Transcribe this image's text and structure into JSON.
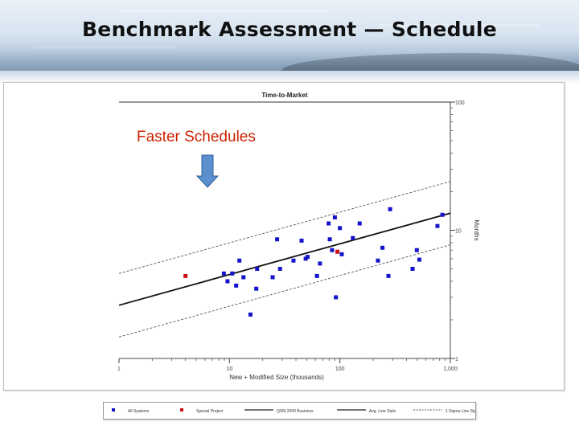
{
  "slide": {
    "title": "Benchmark Assessment — Schedule"
  },
  "annotation": {
    "text": "Faster Schedules",
    "color": "#cc2200",
    "arrow_color": "#5b8fce"
  },
  "chart_data": {
    "type": "scatter",
    "title": "Time-to-Market",
    "xlabel": "New + Modified Size (thousands)",
    "ylabel": "Months",
    "x_scale": "log",
    "y_scale": "log",
    "xlim": [
      1,
      1000
    ],
    "ylim": [
      1,
      100
    ],
    "x_tick_labels": [
      {
        "value": 1,
        "label": "1"
      },
      {
        "value": 10,
        "label": "10"
      },
      {
        "value": 100,
        "label": "100"
      },
      {
        "value": 1000,
        "label": "1,000"
      }
    ],
    "y_tick_labels": [
      {
        "value": 1,
        "label": "1"
      },
      {
        "value": 10,
        "label": "10"
      },
      {
        "value": 100,
        "label": "100"
      }
    ],
    "series": [
      {
        "name": "All Systems",
        "color": "#1414c8",
        "marker": "square",
        "points": [
          {
            "x": 8.9,
            "y": 4.6
          },
          {
            "x": 9.6,
            "y": 4.0
          },
          {
            "x": 10.6,
            "y": 4.6
          },
          {
            "x": 11.5,
            "y": 3.7
          },
          {
            "x": 12.3,
            "y": 5.8
          },
          {
            "x": 13.4,
            "y": 4.3
          },
          {
            "x": 15.5,
            "y": 2.2
          },
          {
            "x": 17.5,
            "y": 3.5
          },
          {
            "x": 17.8,
            "y": 5.0
          },
          {
            "x": 24.6,
            "y": 4.3
          },
          {
            "x": 27.0,
            "y": 8.5
          },
          {
            "x": 28.7,
            "y": 5.0
          },
          {
            "x": 38.0,
            "y": 5.8
          },
          {
            "x": 45.0,
            "y": 8.3
          },
          {
            "x": 49.0,
            "y": 6.0
          },
          {
            "x": 51.0,
            "y": 6.2
          },
          {
            "x": 62.0,
            "y": 4.4
          },
          {
            "x": 66.0,
            "y": 5.5
          },
          {
            "x": 79.0,
            "y": 11.3
          },
          {
            "x": 81.0,
            "y": 8.5
          },
          {
            "x": 85.0,
            "y": 7.0
          },
          {
            "x": 90.0,
            "y": 12.6
          },
          {
            "x": 92.0,
            "y": 3.0
          },
          {
            "x": 100.0,
            "y": 10.4
          },
          {
            "x": 104.0,
            "y": 6.5
          },
          {
            "x": 131.0,
            "y": 8.7
          },
          {
            "x": 151.0,
            "y": 11.3
          },
          {
            "x": 221.0,
            "y": 5.8
          },
          {
            "x": 243.0,
            "y": 7.3
          },
          {
            "x": 275.0,
            "y": 4.4
          },
          {
            "x": 285.0,
            "y": 14.6
          },
          {
            "x": 455.0,
            "y": 5.0
          },
          {
            "x": 497.0,
            "y": 7.0
          },
          {
            "x": 524.0,
            "y": 5.9
          },
          {
            "x": 764.0,
            "y": 10.8
          },
          {
            "x": 847.0,
            "y": 13.2
          }
        ]
      },
      {
        "name": "Special Project",
        "color": "#cc1111",
        "marker": "square",
        "points": [
          {
            "x": 4.0,
            "y": 4.4
          },
          {
            "x": 95.0,
            "y": 6.8
          }
        ]
      }
    ],
    "lines": [
      {
        "name": "QSM 2000 Business",
        "style": "solid",
        "points": [
          {
            "x": 1,
            "y": 2.6
          },
          {
            "x": 1000,
            "y": 13.6
          }
        ]
      },
      {
        "name": "Avg. Line Style",
        "style": "solid",
        "points": [
          {
            "x": 1,
            "y": 2.6
          },
          {
            "x": 1000,
            "y": 13.6
          }
        ]
      },
      {
        "name": "1 Sigma Line Style",
        "style": "dashed",
        "points": [
          {
            "x": 1,
            "y": 4.6
          },
          {
            "x": 1000,
            "y": 24.0
          }
        ]
      },
      {
        "name": "1 Sigma Line Style",
        "style": "dashed",
        "points": [
          {
            "x": 1,
            "y": 1.47
          },
          {
            "x": 1000,
            "y": 7.7
          }
        ]
      }
    ],
    "legend": {
      "placement": "bottom",
      "items": [
        {
          "label": "All Systems",
          "kind": "marker",
          "color": "#1414c8"
        },
        {
          "label": "Special Project",
          "kind": "marker",
          "color": "#cc1111"
        },
        {
          "label": "QSM 2000 Business",
          "kind": "line",
          "dash": false
        },
        {
          "label": "Avg. Line Style",
          "kind": "line",
          "dash": false
        },
        {
          "label": "1 Sigma Line Style",
          "kind": "line",
          "dash": true
        }
      ]
    },
    "grid": false
  }
}
